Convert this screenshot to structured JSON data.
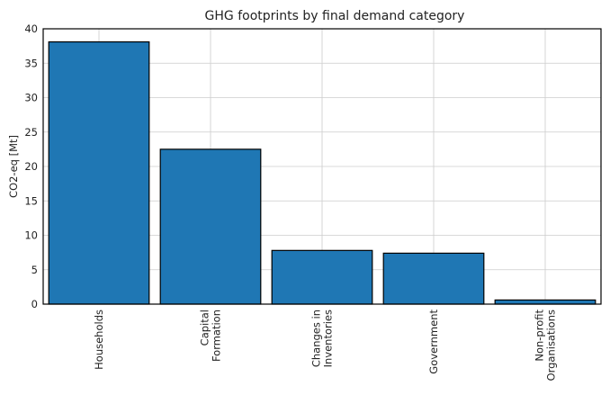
{
  "chart_data": {
    "type": "bar",
    "title": "GHG footprints by final demand category",
    "xlabel": "",
    "ylabel": "CO2-eq [Mt]",
    "categories": [
      [
        "Households"
      ],
      [
        "Capital",
        "Formation"
      ],
      [
        "Changes in",
        "Inventories"
      ],
      [
        "Government"
      ],
      [
        "Non-profit",
        "Organisations"
      ]
    ],
    "values": [
      38.1,
      22.5,
      7.8,
      7.4,
      0.6
    ],
    "ylim": [
      0,
      40
    ],
    "yticks": [
      0,
      5,
      10,
      15,
      20,
      25,
      30,
      35,
      40
    ],
    "grid": true,
    "legend": "none",
    "colors": {
      "bar": "#1f77b4",
      "bar_edge": "#000000",
      "grid": "#cccccc",
      "axes": "#000000"
    }
  }
}
